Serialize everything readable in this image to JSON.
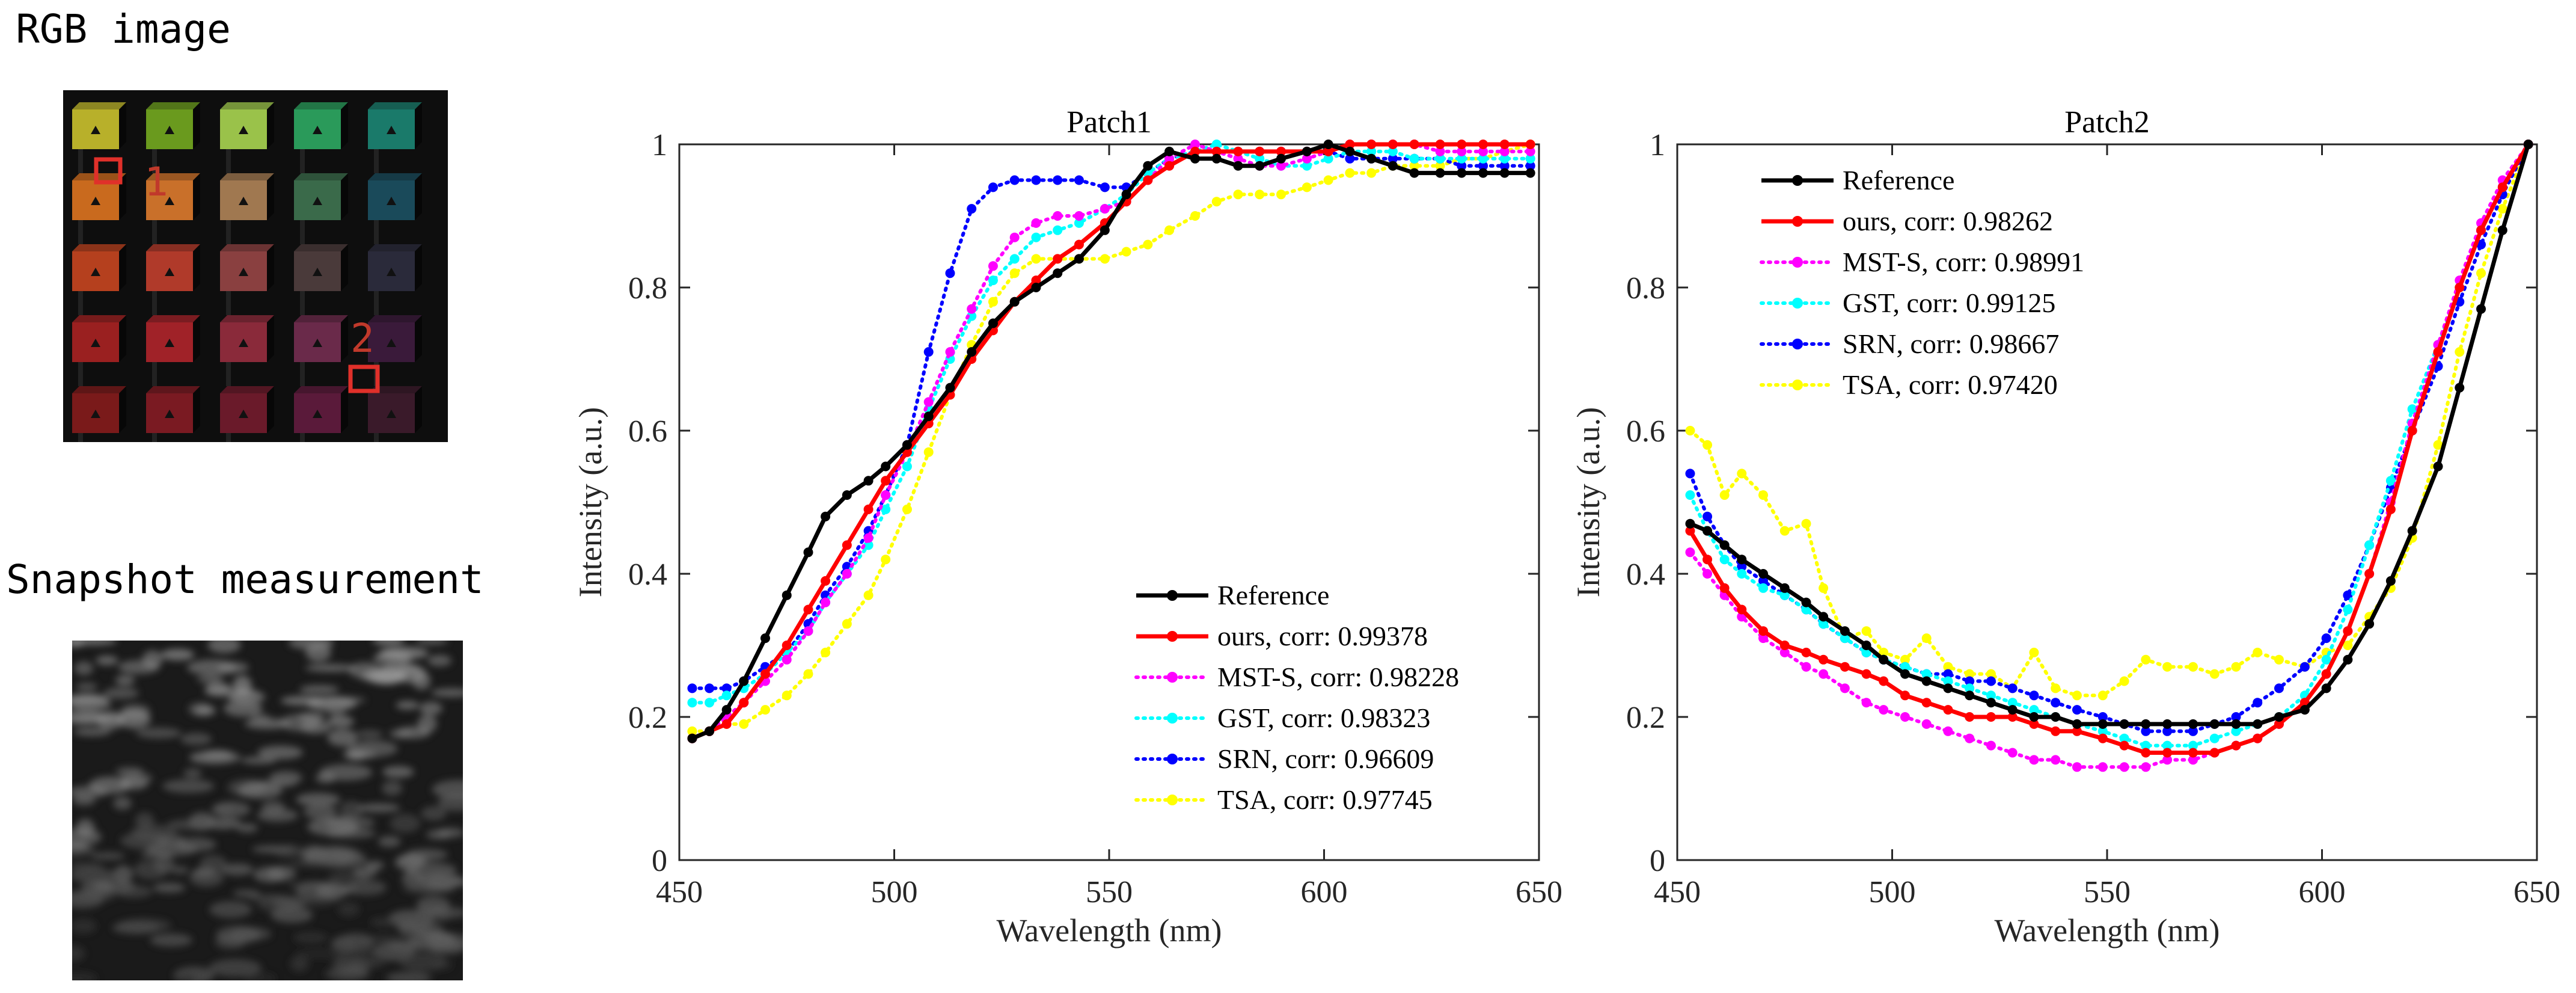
{
  "images": {
    "rgb": {
      "title": "RGB image",
      "markers": [
        {
          "label": "1",
          "color": "#e0302a"
        },
        {
          "label": "2",
          "color": "#e0302a"
        }
      ]
    },
    "snapshot": {
      "title": "Snapshot measurement"
    }
  },
  "chart_data": [
    {
      "type": "line",
      "title": "Patch1",
      "xlabel": "Wavelength (nm)",
      "ylabel": "Intensity (a.u.)",
      "xlim": [
        450,
        650
      ],
      "ylim": [
        0,
        1
      ],
      "xticks": [
        450,
        500,
        550,
        600,
        650
      ],
      "yticks": [
        0,
        0.2,
        0.4,
        0.6,
        0.8,
        1
      ],
      "ytick_labels": [
        "0",
        "0.2",
        "0.4",
        "0.6",
        "0.8",
        "1"
      ],
      "legend_position": "bottom-right",
      "x": [
        453,
        457,
        461,
        465,
        470,
        475,
        480,
        484,
        489,
        494,
        498,
        503,
        508,
        513,
        518,
        523,
        528,
        533,
        538,
        543,
        549,
        554,
        559,
        564,
        570,
        575,
        580,
        585,
        590,
        596,
        601,
        606,
        611,
        616,
        621,
        627,
        632,
        637,
        642,
        648
      ],
      "series": [
        {
          "name": "Reference",
          "color": "#000000",
          "style": "solid",
          "values": [
            0.17,
            0.18,
            0.21,
            0.25,
            0.31,
            0.37,
            0.43,
            0.48,
            0.51,
            0.53,
            0.55,
            0.58,
            0.62,
            0.66,
            0.71,
            0.75,
            0.78,
            0.8,
            0.82,
            0.84,
            0.88,
            0.93,
            0.97,
            0.99,
            0.98,
            0.98,
            0.97,
            0.97,
            0.98,
            0.99,
            1.0,
            0.99,
            0.98,
            0.97,
            0.96,
            0.96,
            0.96,
            0.96,
            0.96,
            0.96
          ]
        },
        {
          "name": "ours, corr: 0.99378",
          "color": "#ff0000",
          "style": "solid",
          "values": [
            0.17,
            0.18,
            0.19,
            0.22,
            0.26,
            0.3,
            0.35,
            0.39,
            0.44,
            0.49,
            0.53,
            0.57,
            0.61,
            0.65,
            0.7,
            0.74,
            0.78,
            0.81,
            0.84,
            0.86,
            0.89,
            0.92,
            0.95,
            0.97,
            0.99,
            0.99,
            0.99,
            0.99,
            0.99,
            0.99,
            0.99,
            1.0,
            1.0,
            1.0,
            1.0,
            1.0,
            1.0,
            1.0,
            1.0,
            1.0
          ]
        },
        {
          "name": "MST-S, corr: 0.98228",
          "color": "#ff00ff",
          "style": "dotted",
          "values": [
            0.17,
            0.18,
            0.2,
            0.22,
            0.25,
            0.28,
            0.32,
            0.36,
            0.4,
            0.45,
            0.51,
            0.57,
            0.64,
            0.71,
            0.77,
            0.83,
            0.87,
            0.89,
            0.9,
            0.9,
            0.91,
            0.92,
            0.95,
            0.98,
            1.0,
            0.99,
            0.98,
            0.97,
            0.97,
            0.98,
            0.99,
            1.0,
            1.0,
            1.0,
            1.0,
            0.99,
            0.99,
            0.99,
            0.99,
            0.99
          ]
        },
        {
          "name": "GST, corr: 0.98323",
          "color": "#00ffff",
          "style": "dotted",
          "values": [
            0.22,
            0.22,
            0.23,
            0.24,
            0.26,
            0.29,
            0.32,
            0.36,
            0.4,
            0.44,
            0.49,
            0.55,
            0.63,
            0.7,
            0.76,
            0.81,
            0.84,
            0.87,
            0.88,
            0.89,
            0.91,
            0.93,
            0.96,
            0.98,
            0.99,
            1.0,
            0.99,
            0.98,
            0.97,
            0.97,
            0.98,
            0.99,
            0.99,
            0.99,
            0.98,
            0.98,
            0.98,
            0.98,
            0.98,
            0.98
          ]
        },
        {
          "name": "SRN, corr: 0.96609",
          "color": "#0000ff",
          "style": "dotted",
          "values": [
            0.24,
            0.24,
            0.24,
            0.25,
            0.27,
            0.29,
            0.33,
            0.37,
            0.41,
            0.46,
            0.51,
            0.58,
            0.71,
            0.82,
            0.91,
            0.94,
            0.95,
            0.95,
            0.95,
            0.95,
            0.94,
            0.94,
            0.96,
            0.98,
            0.99,
            0.99,
            0.99,
            0.99,
            0.99,
            0.99,
            0.99,
            0.98,
            0.98,
            0.98,
            0.98,
            0.98,
            0.97,
            0.97,
            0.97,
            0.97
          ]
        },
        {
          "name": "TSA, corr: 0.97745",
          "color": "#ffff00",
          "style": "dotted",
          "values": [
            0.18,
            0.18,
            0.19,
            0.19,
            0.21,
            0.23,
            0.26,
            0.29,
            0.33,
            0.37,
            0.42,
            0.49,
            0.57,
            0.65,
            0.72,
            0.78,
            0.82,
            0.84,
            0.84,
            0.84,
            0.84,
            0.85,
            0.86,
            0.88,
            0.9,
            0.92,
            0.93,
            0.93,
            0.93,
            0.94,
            0.95,
            0.96,
            0.96,
            0.97,
            0.97,
            0.97,
            0.98,
            0.98,
            0.99,
            1.0
          ]
        }
      ]
    },
    {
      "type": "line",
      "title": "Patch2",
      "xlabel": "Wavelength (nm)",
      "ylabel": "Intensity (a.u.)",
      "xlim": [
        450,
        650
      ],
      "ylim": [
        0,
        1
      ],
      "xticks": [
        450,
        500,
        550,
        600,
        650
      ],
      "yticks": [
        0,
        0.2,
        0.4,
        0.6,
        0.8,
        1
      ],
      "ytick_labels": [
        "0",
        "0.2",
        "0.4",
        "0.6",
        "0.8",
        "1"
      ],
      "legend_position": "top-left",
      "x": [
        453,
        457,
        461,
        465,
        470,
        475,
        480,
        484,
        489,
        494,
        498,
        503,
        508,
        513,
        518,
        523,
        528,
        533,
        538,
        543,
        549,
        554,
        559,
        564,
        570,
        575,
        580,
        585,
        590,
        596,
        601,
        606,
        611,
        616,
        621,
        627,
        632,
        637,
        642,
        648
      ],
      "series": [
        {
          "name": "Reference",
          "color": "#000000",
          "style": "solid",
          "values": [
            0.47,
            0.46,
            0.44,
            0.42,
            0.4,
            0.38,
            0.36,
            0.34,
            0.32,
            0.3,
            0.28,
            0.26,
            0.25,
            0.24,
            0.23,
            0.22,
            0.21,
            0.2,
            0.2,
            0.19,
            0.19,
            0.19,
            0.19,
            0.19,
            0.19,
            0.19,
            0.19,
            0.19,
            0.2,
            0.21,
            0.24,
            0.28,
            0.33,
            0.39,
            0.46,
            0.55,
            0.66,
            0.77,
            0.88,
            1.0
          ]
        },
        {
          "name": "ours, corr: 0.98262",
          "color": "#ff0000",
          "style": "solid",
          "values": [
            0.46,
            0.42,
            0.38,
            0.35,
            0.32,
            0.3,
            0.29,
            0.28,
            0.27,
            0.26,
            0.25,
            0.23,
            0.22,
            0.21,
            0.2,
            0.2,
            0.2,
            0.19,
            0.18,
            0.18,
            0.17,
            0.16,
            0.15,
            0.15,
            0.15,
            0.15,
            0.16,
            0.17,
            0.19,
            0.22,
            0.26,
            0.32,
            0.4,
            0.49,
            0.6,
            0.71,
            0.8,
            0.88,
            0.94,
            1.0
          ]
        },
        {
          "name": "MST-S, corr: 0.98991",
          "color": "#ff00ff",
          "style": "dotted",
          "values": [
            0.43,
            0.4,
            0.37,
            0.34,
            0.31,
            0.29,
            0.27,
            0.26,
            0.24,
            0.22,
            0.21,
            0.2,
            0.19,
            0.18,
            0.17,
            0.16,
            0.15,
            0.14,
            0.14,
            0.13,
            0.13,
            0.13,
            0.13,
            0.14,
            0.14,
            0.15,
            0.16,
            0.17,
            0.19,
            0.22,
            0.26,
            0.32,
            0.4,
            0.5,
            0.61,
            0.72,
            0.81,
            0.89,
            0.95,
            1.0
          ]
        },
        {
          "name": "GST, corr: 0.99125",
          "color": "#00ffff",
          "style": "dotted",
          "values": [
            0.51,
            0.46,
            0.42,
            0.4,
            0.38,
            0.37,
            0.35,
            0.33,
            0.31,
            0.29,
            0.28,
            0.27,
            0.26,
            0.25,
            0.24,
            0.23,
            0.22,
            0.21,
            0.2,
            0.19,
            0.18,
            0.17,
            0.16,
            0.16,
            0.16,
            0.17,
            0.18,
            0.19,
            0.2,
            0.23,
            0.28,
            0.35,
            0.44,
            0.53,
            0.63,
            0.72,
            0.8,
            0.88,
            0.94,
            1.0
          ]
        },
        {
          "name": "SRN, corr: 0.98667",
          "color": "#0000ff",
          "style": "dotted",
          "values": [
            0.54,
            0.48,
            0.44,
            0.41,
            0.39,
            0.37,
            0.35,
            0.33,
            0.31,
            0.29,
            0.28,
            0.27,
            0.26,
            0.26,
            0.25,
            0.25,
            0.24,
            0.23,
            0.22,
            0.21,
            0.2,
            0.19,
            0.18,
            0.18,
            0.18,
            0.19,
            0.2,
            0.22,
            0.24,
            0.27,
            0.31,
            0.37,
            0.44,
            0.52,
            0.6,
            0.69,
            0.78,
            0.86,
            0.93,
            1.0
          ]
        },
        {
          "name": "TSA, corr: 0.97420",
          "color": "#ffff00",
          "style": "dotted",
          "values": [
            0.6,
            0.58,
            0.51,
            0.54,
            0.51,
            0.46,
            0.47,
            0.38,
            0.31,
            0.32,
            0.29,
            0.28,
            0.31,
            0.27,
            0.26,
            0.26,
            0.24,
            0.29,
            0.24,
            0.23,
            0.23,
            0.25,
            0.28,
            0.27,
            0.27,
            0.26,
            0.27,
            0.29,
            0.28,
            0.27,
            0.29,
            0.3,
            0.34,
            0.38,
            0.45,
            0.58,
            0.71,
            0.82,
            0.91,
            1.0
          ]
        }
      ]
    }
  ]
}
